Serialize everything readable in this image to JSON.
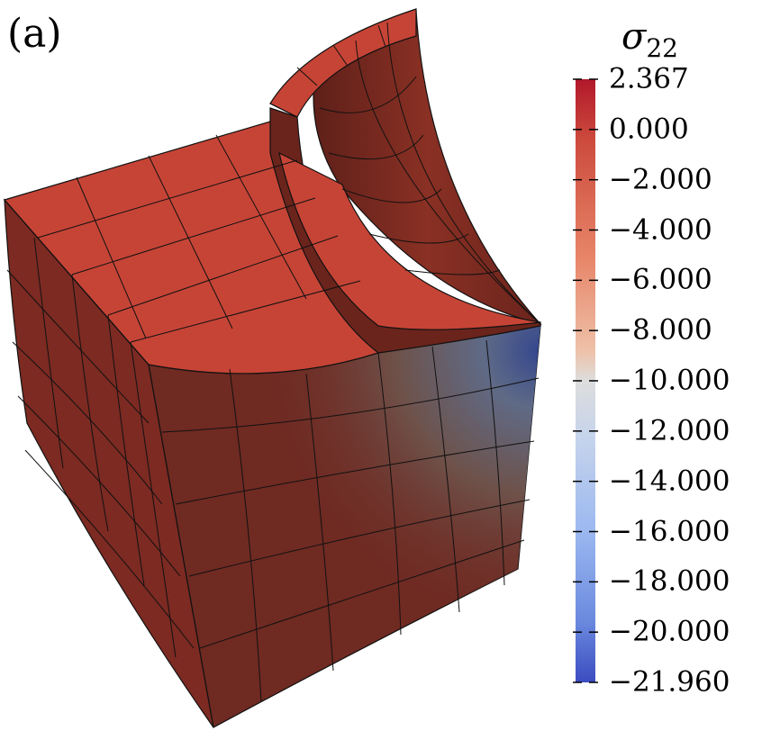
{
  "panel_label": "(a)",
  "colorbar": {
    "symbol": "σ",
    "subscript": "22",
    "ticks": [
      "2.367",
      "0.000",
      "−2.000",
      "−4.000",
      "−6.000",
      "−8.000",
      "−10.000",
      "−12.000",
      "−14.000",
      "−16.000",
      "−18.000",
      "−20.000",
      "−21.960"
    ],
    "max_color": "#b2182b",
    "mid_color": "#dddddd",
    "min_color": "#3b4cc0"
  },
  "mesh": {
    "face_color": "#c64436",
    "side_color": "#7a2a22",
    "edge_color": "#111111"
  }
}
